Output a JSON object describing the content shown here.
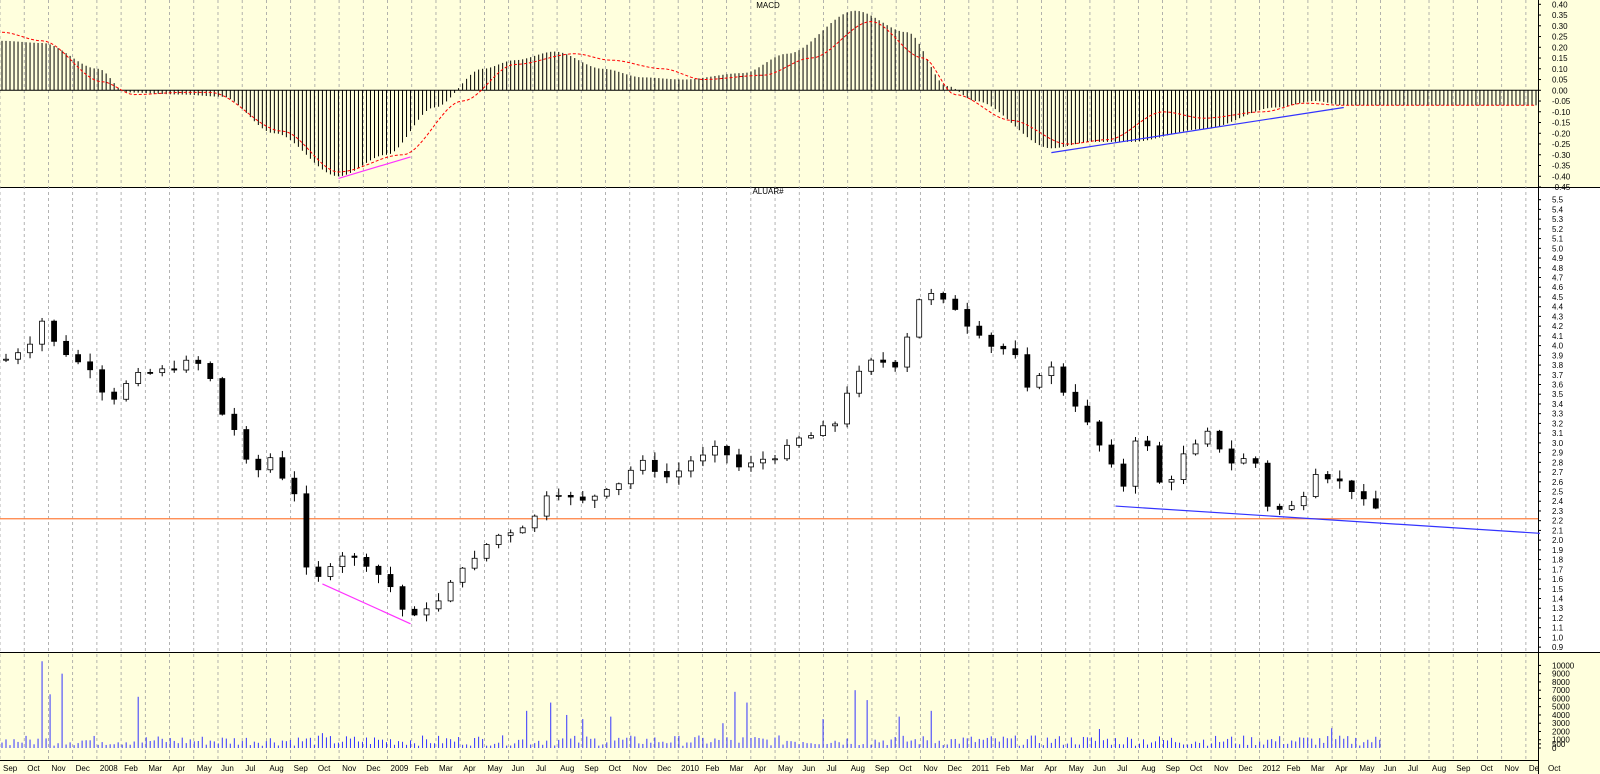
{
  "chart_data": [
    {
      "panel": "macd",
      "type": "bar",
      "title": "MACD",
      "ylim": [
        -0.45,
        0.42
      ],
      "yticks": [
        "0.40",
        "0.35",
        "0.30",
        "0.25",
        "0.20",
        "0.15",
        "0.10",
        "0.05",
        "0.00",
        "-0.05",
        "-0.10",
        "-0.15",
        "-0.20",
        "-0.25",
        "-0.30",
        "-0.35",
        "-0.40",
        "-0.45"
      ],
      "histogram_keyframes": [
        {
          "t": 0,
          "v": 0.23
        },
        {
          "t": 10,
          "v": 0.22
        },
        {
          "t": 24,
          "v": 0.1
        },
        {
          "t": 31,
          "v": -0.01
        },
        {
          "t": 45,
          "v": -0.02
        },
        {
          "t": 55,
          "v": -0.03
        },
        {
          "t": 68,
          "v": -0.2
        },
        {
          "t": 84,
          "v": -0.4
        },
        {
          "t": 96,
          "v": -0.3
        },
        {
          "t": 108,
          "v": -0.08
        },
        {
          "t": 120,
          "v": 0.1
        },
        {
          "t": 128,
          "v": 0.14
        },
        {
          "t": 138,
          "v": 0.18
        },
        {
          "t": 150,
          "v": 0.1
        },
        {
          "t": 160,
          "v": 0.06
        },
        {
          "t": 170,
          "v": 0.05
        },
        {
          "t": 185,
          "v": 0.08
        },
        {
          "t": 196,
          "v": 0.17
        },
        {
          "t": 213,
          "v": 0.37
        },
        {
          "t": 226,
          "v": 0.27
        },
        {
          "t": 236,
          "v": 0.02
        },
        {
          "t": 243,
          "v": -0.05
        },
        {
          "t": 262,
          "v": -0.27
        },
        {
          "t": 272,
          "v": -0.24
        },
        {
          "t": 282,
          "v": -0.24
        },
        {
          "t": 300,
          "v": -0.18
        },
        {
          "t": 318,
          "v": -0.08
        },
        {
          "t": 328,
          "v": -0.05
        },
        {
          "t": 335,
          "v": -0.07
        }
      ],
      "signal_keyframes": [
        {
          "t": 0,
          "v": 0.27
        },
        {
          "t": 10,
          "v": 0.23
        },
        {
          "t": 25,
          "v": 0.04
        },
        {
          "t": 33,
          "v": -0.02
        },
        {
          "t": 45,
          "v": -0.01
        },
        {
          "t": 52,
          "v": -0.01
        },
        {
          "t": 70,
          "v": -0.19
        },
        {
          "t": 84,
          "v": -0.38
        },
        {
          "t": 100,
          "v": -0.3
        },
        {
          "t": 115,
          "v": -0.05
        },
        {
          "t": 128,
          "v": 0.12
        },
        {
          "t": 143,
          "v": 0.17
        },
        {
          "t": 152,
          "v": 0.14
        },
        {
          "t": 165,
          "v": 0.1
        },
        {
          "t": 175,
          "v": 0.05
        },
        {
          "t": 190,
          "v": 0.07
        },
        {
          "t": 202,
          "v": 0.15
        },
        {
          "t": 217,
          "v": 0.32
        },
        {
          "t": 230,
          "v": 0.15
        },
        {
          "t": 238,
          "v": -0.02
        },
        {
          "t": 252,
          "v": -0.14
        },
        {
          "t": 266,
          "v": -0.25
        },
        {
          "t": 276,
          "v": -0.23
        },
        {
          "t": 290,
          "v": -0.1
        },
        {
          "t": 300,
          "v": -0.13
        },
        {
          "t": 315,
          "v": -0.1
        },
        {
          "t": 325,
          "v": -0.06
        },
        {
          "t": 335,
          "v": -0.07
        }
      ],
      "trendlines": [
        {
          "color": "#ff33ff",
          "x1": 84,
          "y1": -0.41,
          "x2": 102,
          "y2": -0.31
        },
        {
          "color": "#3333ff",
          "x1": 262,
          "y1": -0.29,
          "x2": 335,
          "y2": -0.08
        }
      ]
    },
    {
      "panel": "price",
      "type": "candlestick",
      "title": "ALUAR#",
      "ylim": [
        0.85,
        5.62
      ],
      "yticks": [
        "5.5",
        "5.4",
        "5.3",
        "5.2",
        "5.1",
        "5.0",
        "4.9",
        "4.8",
        "4.7",
        "4.6",
        "4.5",
        "4.4",
        "4.3",
        "4.2",
        "4.1",
        "4.0",
        "3.9",
        "3.8",
        "3.7",
        "3.6",
        "3.5",
        "3.4",
        "3.3",
        "3.2",
        "3.1",
        "3.0",
        "2.9",
        "2.8",
        "2.7",
        "2.6",
        "2.5",
        "2.4",
        "2.3",
        "2.2",
        "2.1",
        "2.0",
        "1.9",
        "1.8",
        "1.7",
        "1.6",
        "1.5",
        "1.4",
        "1.3",
        "1.2",
        "1.1",
        "1.0",
        "0.9"
      ],
      "close_keyframes": [
        {
          "t": 0,
          "v": 3.85
        },
        {
          "t": 5,
          "v": 3.95
        },
        {
          "t": 11,
          "v": 4.28
        },
        {
          "t": 14,
          "v": 3.95
        },
        {
          "t": 21,
          "v": 3.8
        },
        {
          "t": 27,
          "v": 3.45
        },
        {
          "t": 34,
          "v": 3.7
        },
        {
          "t": 41,
          "v": 3.75
        },
        {
          "t": 48,
          "v": 3.85
        },
        {
          "t": 51,
          "v": 3.7
        },
        {
          "t": 56,
          "v": 3.25
        },
        {
          "t": 63,
          "v": 2.7
        },
        {
          "t": 67,
          "v": 2.85
        },
        {
          "t": 70,
          "v": 2.65
        },
        {
          "t": 75,
          "v": 2.4
        },
        {
          "t": 76,
          "v": 1.7
        },
        {
          "t": 78,
          "v": 1.6
        },
        {
          "t": 85,
          "v": 1.85
        },
        {
          "t": 92,
          "v": 1.75
        },
        {
          "t": 96,
          "v": 1.55
        },
        {
          "t": 102,
          "v": 1.2
        },
        {
          "t": 108,
          "v": 1.35
        },
        {
          "t": 116,
          "v": 1.75
        },
        {
          "t": 124,
          "v": 2.05
        },
        {
          "t": 131,
          "v": 2.15
        },
        {
          "t": 137,
          "v": 2.5
        },
        {
          "t": 145,
          "v": 2.4
        },
        {
          "t": 152,
          "v": 2.55
        },
        {
          "t": 160,
          "v": 2.8
        },
        {
          "t": 166,
          "v": 2.65
        },
        {
          "t": 174,
          "v": 2.85
        },
        {
          "t": 179,
          "v": 2.95
        },
        {
          "t": 184,
          "v": 2.75
        },
        {
          "t": 192,
          "v": 2.85
        },
        {
          "t": 200,
          "v": 3.05
        },
        {
          "t": 208,
          "v": 3.2
        },
        {
          "t": 213,
          "v": 3.7
        },
        {
          "t": 218,
          "v": 3.85
        },
        {
          "t": 223,
          "v": 3.8
        },
        {
          "t": 226,
          "v": 4.1
        },
        {
          "t": 230,
          "v": 4.55
        },
        {
          "t": 236,
          "v": 4.45
        },
        {
          "t": 242,
          "v": 4.2
        },
        {
          "t": 247,
          "v": 4.0
        },
        {
          "t": 252,
          "v": 3.95
        },
        {
          "t": 256,
          "v": 3.55
        },
        {
          "t": 261,
          "v": 3.8
        },
        {
          "t": 266,
          "v": 3.5
        },
        {
          "t": 271,
          "v": 3.2
        },
        {
          "t": 276,
          "v": 2.85
        },
        {
          "t": 279,
          "v": 2.5
        },
        {
          "t": 284,
          "v": 3.1
        },
        {
          "t": 290,
          "v": 2.55
        },
        {
          "t": 296,
          "v": 2.9
        },
        {
          "t": 301,
          "v": 3.1
        },
        {
          "t": 307,
          "v": 2.8
        },
        {
          "t": 312,
          "v": 2.85
        },
        {
          "t": 317,
          "v": 2.3
        },
        {
          "t": 323,
          "v": 2.35
        },
        {
          "t": 328,
          "v": 2.7
        },
        {
          "t": 334,
          "v": 2.6
        },
        {
          "t": 338,
          "v": 2.5
        },
        {
          "t": 342,
          "v": 2.3
        },
        {
          "t": 345,
          "v": 2.4
        }
      ],
      "horizontal_line": {
        "color": "#ff8040",
        "y": 2.22
      },
      "trendlines": [
        {
          "color": "#ff33ff",
          "x1": 80,
          "y1": 1.55,
          "x2": 102,
          "y2": 1.14
        },
        {
          "color": "#3333ff",
          "x1": 278,
          "y1": 2.35,
          "x2": 384,
          "y2": 2.07
        }
      ]
    },
    {
      "panel": "volume",
      "type": "bar",
      "ylim": [
        0,
        11500
      ],
      "yticks": [
        "10000",
        "9000",
        "8000",
        "7000",
        "6000",
        "5000",
        "4000",
        "3000",
        "2000",
        "1000",
        "500",
        "0"
      ],
      "spikes": [
        {
          "t": 10,
          "v": 10500
        },
        {
          "t": 12,
          "v": 6500
        },
        {
          "t": 15,
          "v": 9000
        },
        {
          "t": 34,
          "v": 6200
        },
        {
          "t": 80,
          "v": 1800
        },
        {
          "t": 131,
          "v": 4500
        },
        {
          "t": 137,
          "v": 5500
        },
        {
          "t": 141,
          "v": 4000
        },
        {
          "t": 145,
          "v": 3500
        },
        {
          "t": 152,
          "v": 3800
        },
        {
          "t": 180,
          "v": 3000
        },
        {
          "t": 183,
          "v": 6800
        },
        {
          "t": 186,
          "v": 5500
        },
        {
          "t": 205,
          "v": 3500
        },
        {
          "t": 213,
          "v": 7000
        },
        {
          "t": 216,
          "v": 5800
        },
        {
          "t": 224,
          "v": 3800
        },
        {
          "t": 232,
          "v": 4500
        },
        {
          "t": 274,
          "v": 2300
        },
        {
          "t": 332,
          "v": 2400
        }
      ],
      "base": 900
    }
  ],
  "x_axis": {
    "label_overflow": "Oct",
    "months": [
      "Sep",
      "Oct",
      "Nov",
      "Dec",
      "2008",
      "Feb",
      "Mar",
      "Apr",
      "May",
      "Jun",
      "Jul",
      "Aug",
      "Sep",
      "Oct",
      "Nov",
      "Dec",
      "2009",
      "Feb",
      "Mar",
      "Apr",
      "May",
      "Jun",
      "Jul",
      "Aug",
      "Sep",
      "Oct",
      "Nov",
      "Dec",
      "2010",
      "Feb",
      "Mar",
      "Apr",
      "May",
      "Jun",
      "Jul",
      "Aug",
      "Sep",
      "Oct",
      "Nov",
      "Dec",
      "2011",
      "Feb",
      "Mar",
      "Apr",
      "May",
      "Jun",
      "Jul",
      "Aug",
      "Sep",
      "Oct",
      "Nov",
      "Dec",
      "2012",
      "Feb",
      "Mar",
      "Apr",
      "May",
      "Jun",
      "Jul",
      "Aug",
      "Sep",
      "Oct",
      "Nov",
      "De"
    ]
  },
  "colors": {
    "panel_bg": "#ffffdd",
    "price_bg": "#ffffff",
    "histogram": "#000000",
    "signal": "#ff0000",
    "volume": "#3333ff",
    "grid": "#a0a0a0"
  }
}
